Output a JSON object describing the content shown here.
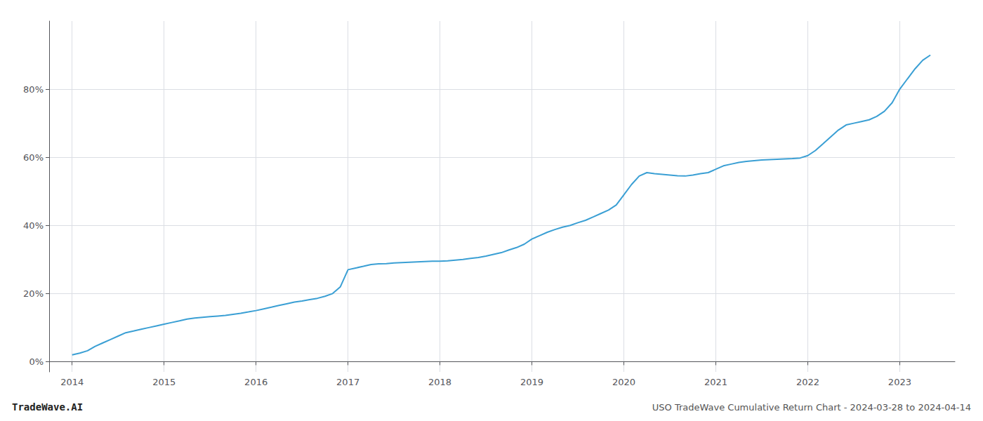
{
  "chart_data": {
    "type": "line",
    "title": "USO TradeWave Cumulative Return Chart - 2024-03-28 to 2024-04-14",
    "annotations": [
      "TradeWave.AI"
    ],
    "color": "#3a9fd4",
    "grid": true,
    "x": [
      2014.0,
      2014.083,
      2014.167,
      2014.25,
      2014.333,
      2014.417,
      2014.5,
      2014.583,
      2014.667,
      2014.75,
      2014.833,
      2014.917,
      2015.0,
      2015.083,
      2015.167,
      2015.25,
      2015.333,
      2015.417,
      2015.5,
      2015.583,
      2015.667,
      2015.75,
      2015.833,
      2015.917,
      2016.0,
      2016.083,
      2016.167,
      2016.25,
      2016.333,
      2016.417,
      2016.5,
      2016.583,
      2016.667,
      2016.75,
      2016.833,
      2016.917,
      2017.0,
      2017.083,
      2017.167,
      2017.25,
      2017.333,
      2017.417,
      2017.5,
      2017.583,
      2017.667,
      2017.75,
      2017.833,
      2017.917,
      2018.0,
      2018.083,
      2018.167,
      2018.25,
      2018.333,
      2018.417,
      2018.5,
      2018.583,
      2018.667,
      2018.75,
      2018.833,
      2018.917,
      2019.0,
      2019.083,
      2019.167,
      2019.25,
      2019.333,
      2019.417,
      2019.5,
      2019.583,
      2019.667,
      2019.75,
      2019.833,
      2019.917,
      2020.0,
      2020.083,
      2020.167,
      2020.25,
      2020.333,
      2020.417,
      2020.5,
      2020.583,
      2020.667,
      2020.75,
      2020.833,
      2020.917,
      2021.0,
      2021.083,
      2021.167,
      2021.25,
      2021.333,
      2021.417,
      2021.5,
      2021.583,
      2021.667,
      2021.75,
      2021.833,
      2021.917,
      2022.0,
      2022.083,
      2022.167,
      2022.25,
      2022.333,
      2022.417,
      2022.5,
      2022.583,
      2022.667,
      2022.75,
      2022.833,
      2022.917,
      2023.0,
      2023.083,
      2023.167,
      2023.25,
      2023.333
    ],
    "values": [
      2.0,
      2.5,
      3.2,
      4.5,
      5.5,
      6.5,
      7.5,
      8.5,
      9.0,
      9.5,
      10.0,
      10.5,
      11.0,
      11.5,
      12.0,
      12.5,
      12.8,
      13.0,
      13.2,
      13.4,
      13.6,
      13.9,
      14.2,
      14.6,
      15.0,
      15.5,
      16.0,
      16.5,
      17.0,
      17.5,
      17.8,
      18.2,
      18.6,
      19.2,
      20.0,
      22.0,
      27.0,
      27.5,
      28.0,
      28.5,
      28.7,
      28.8,
      29.0,
      29.1,
      29.2,
      29.3,
      29.4,
      29.5,
      29.5,
      29.6,
      29.8,
      30.0,
      30.3,
      30.6,
      31.0,
      31.5,
      32.0,
      32.8,
      33.5,
      34.5,
      36.0,
      37.0,
      38.0,
      38.8,
      39.5,
      40.0,
      40.8,
      41.5,
      42.5,
      43.5,
      44.5,
      46.0,
      49.0,
      52.0,
      54.5,
      55.5,
      55.2,
      55.0,
      54.8,
      54.6,
      54.5,
      54.8,
      55.2,
      55.5,
      56.5,
      57.5,
      58.0,
      58.5,
      58.8,
      59.0,
      59.2,
      59.3,
      59.4,
      59.5,
      59.6,
      59.8,
      60.5,
      62.0,
      64.0,
      66.0,
      68.0,
      69.5,
      70.0,
      70.5,
      71.0,
      72.0,
      73.5,
      76.0,
      80.0,
      83.0,
      86.0,
      88.5,
      90.0
    ],
    "xlim": [
      2013.75,
      2023.6
    ],
    "xticks": [
      2014,
      2015,
      2016,
      2017,
      2018,
      2019,
      2020,
      2021,
      2022,
      2023
    ],
    "ylim": [
      -3,
      100
    ],
    "yticks": [
      {
        "value": 0,
        "label": "0%"
      },
      {
        "value": 20,
        "label": "20%"
      },
      {
        "value": 40,
        "label": "40%"
      },
      {
        "value": 60,
        "label": "60%"
      },
      {
        "value": 80,
        "label": "80%"
      }
    ]
  }
}
